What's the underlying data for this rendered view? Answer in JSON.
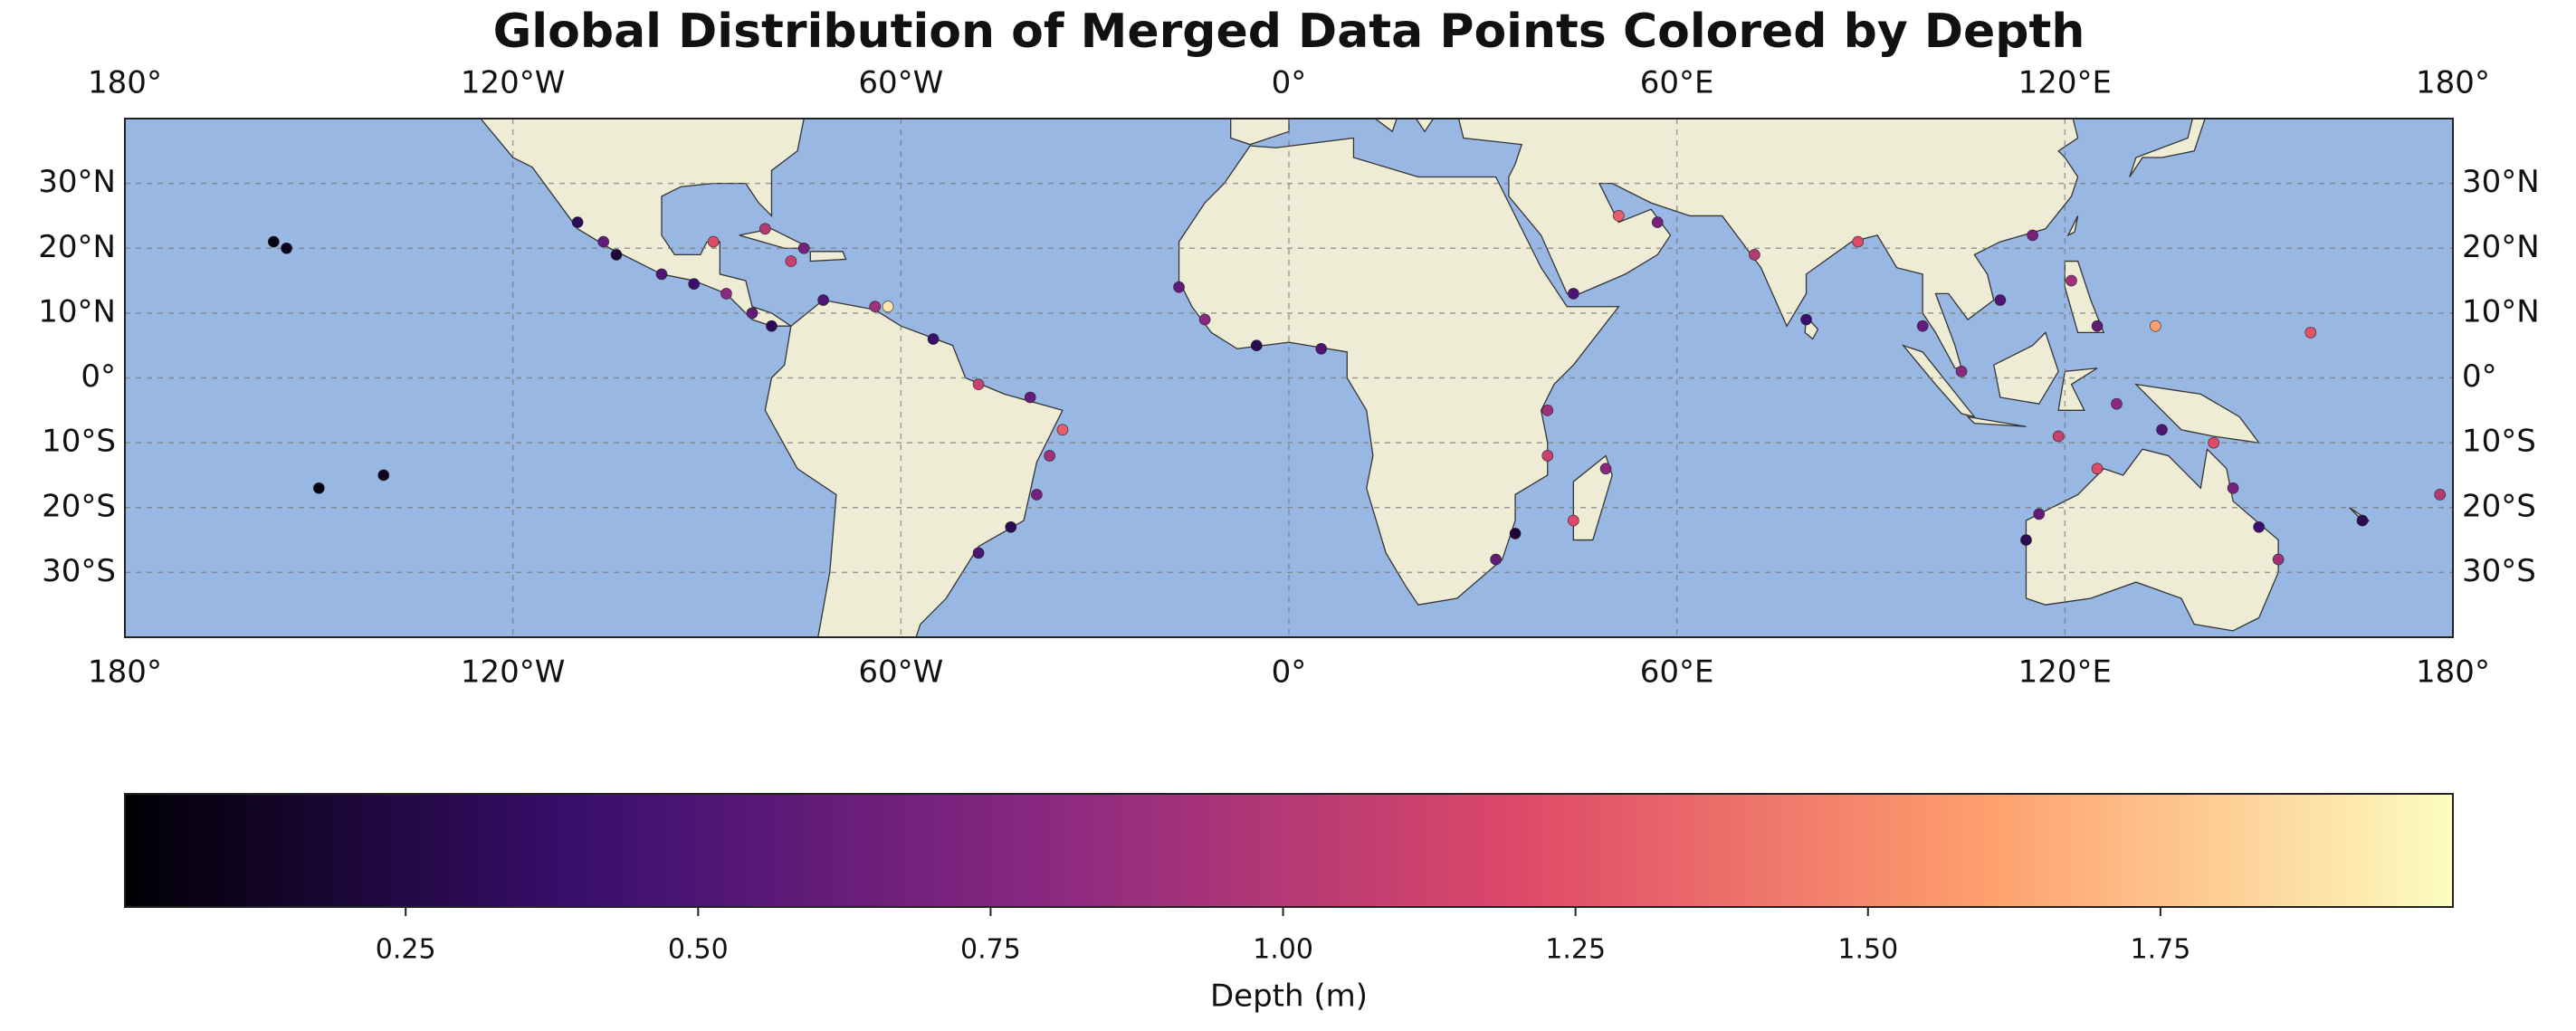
{
  "chart_data": {
    "type": "scatter",
    "title": "Global Distribution of Merged Data Points Colored by Depth",
    "xlim": [
      -180,
      180
    ],
    "ylim": [
      -40,
      40
    ],
    "xticks": [
      {
        "value": -180,
        "label": "180°"
      },
      {
        "value": -120,
        "label": "120°W"
      },
      {
        "value": -60,
        "label": "60°W"
      },
      {
        "value": 0,
        "label": "0°"
      },
      {
        "value": 60,
        "label": "60°E"
      },
      {
        "value": 120,
        "label": "120°E"
      },
      {
        "value": 180,
        "label": "180°"
      }
    ],
    "yticks": [
      {
        "value": -30,
        "label": "30°S"
      },
      {
        "value": -20,
        "label": "20°S"
      },
      {
        "value": -10,
        "label": "10°S"
      },
      {
        "value": 0,
        "label": "0°"
      },
      {
        "value": 10,
        "label": "10°N"
      },
      {
        "value": 20,
        "label": "20°N"
      },
      {
        "value": 30,
        "label": "30°N"
      }
    ],
    "grid": true,
    "x": [
      -110,
      -106,
      -104,
      -97,
      -92,
      -87,
      -83,
      -80,
      -77,
      -81,
      -75,
      -89,
      -72,
      -64,
      -62,
      -55,
      -48,
      -40,
      -35,
      -37,
      -39,
      -43,
      -48,
      -155,
      -157,
      -140,
      -150,
      -17,
      -13,
      -5,
      5,
      40,
      40,
      35,
      32,
      44,
      49,
      44,
      57,
      51,
      72,
      80,
      88,
      98,
      104,
      110,
      115,
      121,
      125,
      119,
      128,
      135,
      143,
      146,
      150,
      153,
      125,
      116,
      114,
      134,
      158,
      178,
      166
    ],
    "y": [
      24,
      21,
      19,
      16,
      14.5,
      13,
      10,
      8,
      18,
      23,
      20,
      21,
      12,
      11,
      11,
      6,
      -1,
      -3,
      -8,
      -12,
      -18,
      -23,
      -27,
      20,
      21,
      -15,
      -17,
      14,
      9,
      5,
      4.5,
      -5,
      -12,
      -24,
      -28,
      -22,
      -14,
      13,
      24,
      25,
      19,
      9,
      21,
      8,
      1,
      12,
      22,
      15,
      8,
      -9,
      -4,
      -8,
      -10,
      -17,
      -23,
      -28,
      -14,
      -21,
      -25,
      8,
      7,
      -18,
      -22
    ],
    "values": [
      0.3,
      0.6,
      0.2,
      0.5,
      0.4,
      0.8,
      0.6,
      0.3,
      1.1,
      1.0,
      0.7,
      1.2,
      0.5,
      0.9,
      1.9,
      0.4,
      1.1,
      0.6,
      1.3,
      0.9,
      0.7,
      0.3,
      0.5,
      0.1,
      0.05,
      0.1,
      0.05,
      0.6,
      0.8,
      0.3,
      0.5,
      0.9,
      1.1,
      0.2,
      0.6,
      1.2,
      0.8,
      0.5,
      0.7,
      1.3,
      1.0,
      0.4,
      1.2,
      0.6,
      0.8,
      0.5,
      0.7,
      0.9,
      0.6,
      1.1,
      0.8,
      0.5,
      1.2,
      0.7,
      0.4,
      0.9,
      1.2,
      0.6,
      0.3,
      1.6,
      1.25,
      1.0,
      0.3
    ],
    "colorbar": {
      "label": "Depth (m)",
      "colormap": "magma",
      "lim": [
        0.01,
        2.0
      ],
      "ticks": [
        0.25,
        {
          "value": 0.5,
          "label": "0.50"
        },
        0.75,
        {
          "value": 1,
          "label": "1.00"
        },
        1.25,
        {
          "value": 1.5,
          "label": "1.50"
        },
        1.75
      ]
    }
  }
}
